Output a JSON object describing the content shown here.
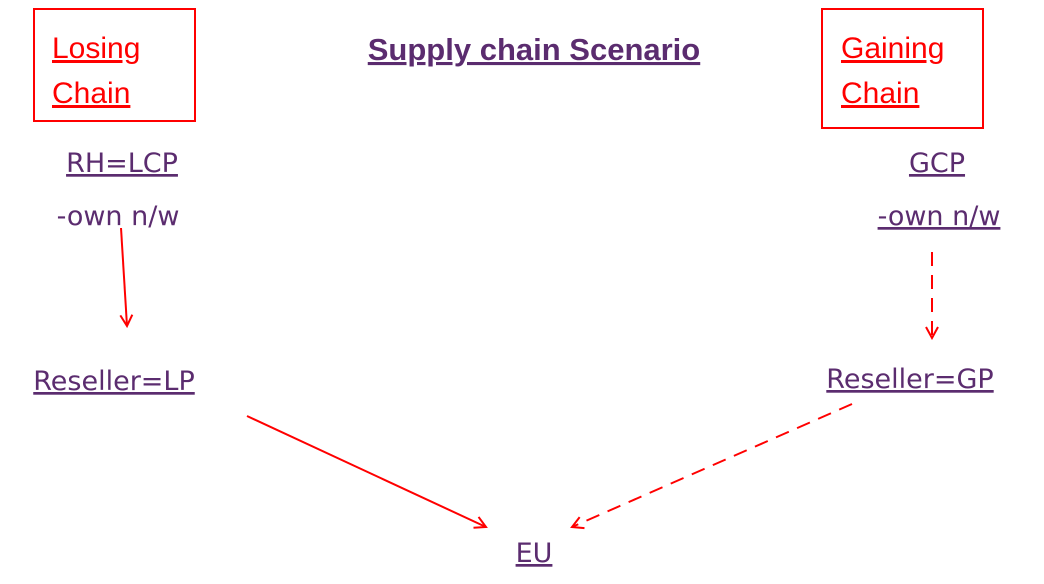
{
  "title": "Supply chain Scenario",
  "boxes": [
    {
      "label_lines": [
        "Losing",
        "Chain"
      ]
    },
    {
      "label_lines": [
        "Gaining",
        "Chain"
      ]
    }
  ],
  "nodes": [
    {
      "label": "RH=LCP",
      "sub": "-own n/w"
    },
    {
      "label": "GCP",
      "sub": "-own n/w"
    },
    {
      "label": "Reseller=LP"
    },
    {
      "label": "Reseller=GP"
    },
    {
      "label": "EU"
    }
  ]
}
